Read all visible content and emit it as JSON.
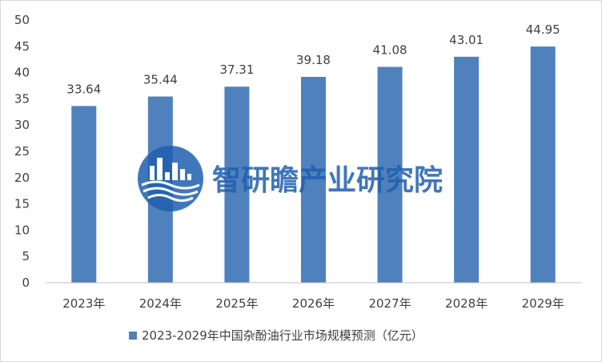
{
  "chart_data": {
    "type": "bar",
    "categories": [
      "2023年",
      "2024年",
      "2025年",
      "2026年",
      "2027年",
      "2028年",
      "2029年"
    ],
    "series": [
      {
        "name": "2023-2029年中国杂酚油行业市场规模预测（亿元）",
        "values": [
          33.64,
          35.44,
          37.31,
          39.18,
          41.08,
          43.01,
          44.95
        ],
        "labels": [
          "33.64",
          "35.44",
          "37.31",
          "39.18",
          "41.08",
          "43.01",
          "44.95"
        ],
        "color": "#4f81bd"
      }
    ],
    "title": "",
    "xlabel": "",
    "ylabel": "",
    "ylim": [
      0,
      50
    ],
    "yticks": [
      "0",
      "5",
      "10",
      "15",
      "20",
      "25",
      "30",
      "35",
      "40",
      "45",
      "50"
    ],
    "grid": false,
    "legend_position": "bottom"
  },
  "watermark": {
    "text": "智研瞻产业研究院",
    "icon": "city-skyline-logo-icon",
    "color": "#1f5fb0"
  },
  "colors": {
    "bar": "#4f81bd",
    "axis": "#bfbfbf",
    "text": "#404040"
  }
}
